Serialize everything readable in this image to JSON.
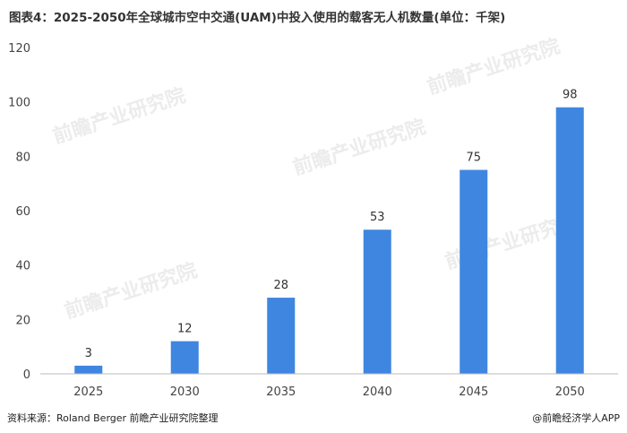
{
  "title": "图表4：2025-2050年全球城市空中交通(UAM)中投入使用的载客无人机数量(单位：千架)",
  "source": "资料来源：Roland Berger 前瞻产业研究院整理",
  "brand": "@前瞻经济学人APP",
  "watermark": "前瞻产业研究院",
  "colors": {
    "bar": "#3f86e0",
    "axis": "#bbbbbb",
    "text": "#444444"
  },
  "chart_data": {
    "type": "bar",
    "title": "图表4：2025-2050年全球城市空中交通(UAM)中投入使用的载客无人机数量(单位：千架)",
    "xlabel": "",
    "ylabel": "",
    "categories": [
      "2025",
      "2030",
      "2035",
      "2040",
      "2045",
      "2050"
    ],
    "values": [
      3,
      12,
      28,
      53,
      75,
      98
    ],
    "ylim": [
      0,
      120
    ],
    "yticks": [
      0,
      20,
      40,
      60,
      80,
      100,
      120
    ],
    "grid": false,
    "data_labels": true
  }
}
